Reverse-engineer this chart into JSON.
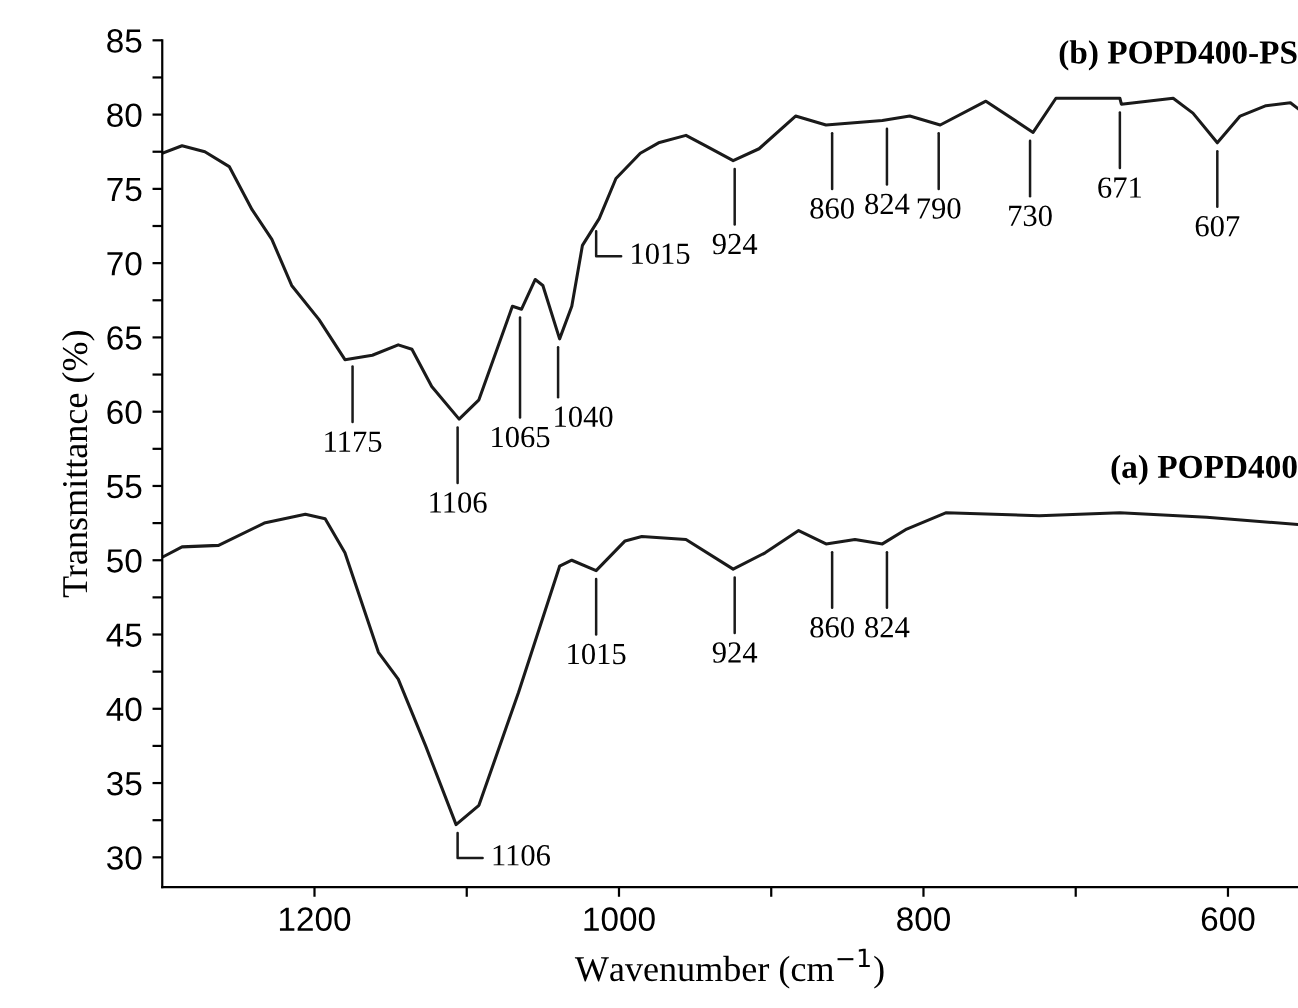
{
  "chart_data": {
    "type": "line",
    "xlabel": "Wavenumber (cm$^{−1}$)",
    "ylabel": "Transmittance (%)",
    "xlim": [
      1300,
      554
    ],
    "xticks": [
      1200,
      {
        "value": 1100,
        "label": null
      },
      1000,
      {
        "value": 900,
        "label": null
      },
      800,
      {
        "value": 700,
        "label": null
      },
      600
    ],
    "ylim": [
      28,
      85
    ],
    "yticks": [
      30,
      {
        "value": 32.5,
        "label": null
      },
      35,
      {
        "value": 37.5,
        "label": null
      },
      40,
      {
        "value": 42.5,
        "label": null
      },
      45,
      {
        "value": 47.5,
        "label": null
      },
      50,
      {
        "value": 52.5,
        "label": null
      },
      55,
      {
        "value": 57.5,
        "label": null
      },
      60,
      {
        "value": 62.5,
        "label": null
      },
      65,
      {
        "value": 67.5,
        "label": null
      },
      70,
      {
        "value": 72.5,
        "label": null
      },
      75,
      {
        "value": 77.5,
        "label": null
      },
      80,
      {
        "value": 82.5,
        "label": null
      },
      85
    ],
    "grid": false,
    "legend": false,
    "marker": "none",
    "line_style": "solid",
    "series": [
      {
        "name": "(b) POPD400-PS",
        "color": "#1a1a1a",
        "x": [
          1300,
          1287,
          1272,
          1256,
          1241,
          1228,
          1215,
          1197,
          1180,
          1162,
          1145,
          1136,
          1123,
          1105,
          1092,
          1070,
          1064,
          1055,
          1050,
          1039,
          1031,
          1024,
          1013,
          1002,
          986,
          974,
          956,
          943,
          925,
          908,
          884,
          864,
          827,
          809,
          789,
          759,
          728,
          713,
          671,
          670,
          636,
          623,
          607,
          592,
          575,
          559,
          554
        ],
        "values": [
          77.4,
          77.9,
          77.5,
          76.5,
          73.6,
          71.6,
          68.5,
          66.2,
          63.5,
          63.8,
          64.5,
          64.2,
          61.7,
          59.5,
          60.8,
          67.1,
          66.9,
          68.9,
          68.5,
          64.9,
          67.1,
          71.2,
          73.0,
          75.7,
          77.4,
          78.1,
          78.6,
          77.9,
          76.9,
          77.7,
          79.9,
          79.3,
          79.6,
          79.9,
          79.3,
          80.9,
          78.8,
          81.1,
          81.1,
          80.7,
          81.1,
          80.1,
          78.1,
          79.9,
          80.6,
          80.8,
          80.4
        ]
      },
      {
        "name": "(a) POPD400",
        "color": "#1a1a1a",
        "x": [
          1300,
          1287,
          1263,
          1233,
          1206,
          1193,
          1180,
          1158,
          1145,
          1127,
          1107,
          1092,
          1066,
          1039,
          1031,
          1015,
          996,
          985,
          956,
          925,
          904,
          882,
          864,
          845,
          827,
          811,
          785,
          724,
          671,
          614,
          554
        ],
        "values": [
          50.2,
          50.9,
          51.0,
          52.5,
          53.1,
          52.8,
          50.5,
          43.8,
          42.0,
          37.5,
          32.2,
          33.5,
          41.1,
          49.6,
          50.0,
          49.3,
          51.3,
          51.6,
          51.4,
          49.4,
          50.5,
          52.0,
          51.1,
          51.4,
          51.1,
          52.1,
          53.2,
          53.0,
          53.2,
          52.9,
          52.4
        ]
      }
    ],
    "annotations": [
      {
        "text": "1175",
        "x": 1175,
        "y": 63.6
      },
      {
        "text": "1106",
        "x": 1106,
        "y": 59.5
      },
      {
        "text": "1065",
        "x": 1065,
        "y": 66.9
      },
      {
        "text": "1040",
        "x": 1040,
        "y": 64.9
      },
      {
        "text": "1015",
        "x": 1015,
        "y": 72.7
      },
      {
        "text": "924",
        "x": 924,
        "y": 76.9
      },
      {
        "text": "860",
        "x": 860,
        "y": 79.3
      },
      {
        "text": "824",
        "x": 824,
        "y": 79.6
      },
      {
        "text": "790",
        "x": 790,
        "y": 79.3
      },
      {
        "text": "730",
        "x": 730,
        "y": 78.8
      },
      {
        "text": "671",
        "x": 671,
        "y": 80.7
      },
      {
        "text": "607",
        "x": 607,
        "y": 78.1
      },
      {
        "text": "1106",
        "x": 1106,
        "y": 32.2
      },
      {
        "text": "1015",
        "x": 1015,
        "y": 49.3
      },
      {
        "text": "924",
        "x": 924,
        "y": 49.4
      },
      {
        "text": "860",
        "x": 860,
        "y": 51.1
      },
      {
        "text": "824",
        "x": 824,
        "y": 51.1
      }
    ]
  }
}
